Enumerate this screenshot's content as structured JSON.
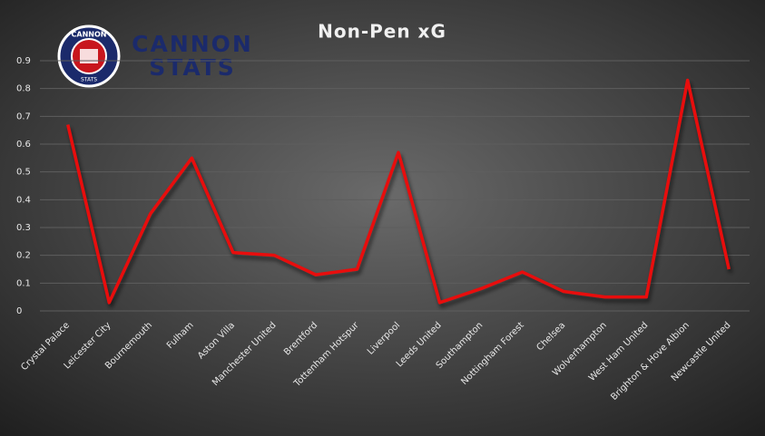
{
  "chart_data": {
    "type": "line",
    "title": "Non-Pen xG",
    "logo": {
      "line1": "CANNON",
      "line2": "STATS"
    },
    "categories": [
      "Crystal Palace",
      "Leicester City",
      "Bournemouth",
      "Fulham",
      "Aston Villa",
      "Manchester United",
      "Brentford",
      "Tottenham Hotspur",
      "Liverpool",
      "Leeds United",
      "Southampton",
      "Nottingham Forest",
      "Chelsea",
      "Wolverhampton",
      "West Ham United",
      "Brighton & Hove Albion",
      "Newcastle United"
    ],
    "series": [
      {
        "name": "Non-Pen xG",
        "color": "#e8100a",
        "values": [
          0.67,
          0.03,
          0.35,
          0.55,
          0.21,
          0.2,
          0.13,
          0.15,
          0.57,
          0.03,
          0.08,
          0.14,
          0.07,
          0.05,
          0.05,
          0.83,
          0.15
        ]
      }
    ],
    "ylim": [
      0,
      0.9
    ],
    "yticks": [
      0,
      0.1,
      0.2,
      0.3,
      0.4,
      0.5,
      0.6,
      0.7,
      0.8,
      0.9
    ],
    "grid": true
  }
}
